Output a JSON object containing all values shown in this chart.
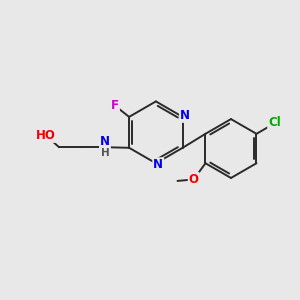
{
  "background_color": "#e8e8e8",
  "bond_color": "#2a2a2a",
  "atom_colors": {
    "F": "#cc00cc",
    "N": "#0000ee",
    "O": "#ee0000",
    "Cl": "#00aa00",
    "C": "#000000",
    "H": "#555555"
  },
  "figsize": [
    3.0,
    3.0
  ],
  "dpi": 100
}
